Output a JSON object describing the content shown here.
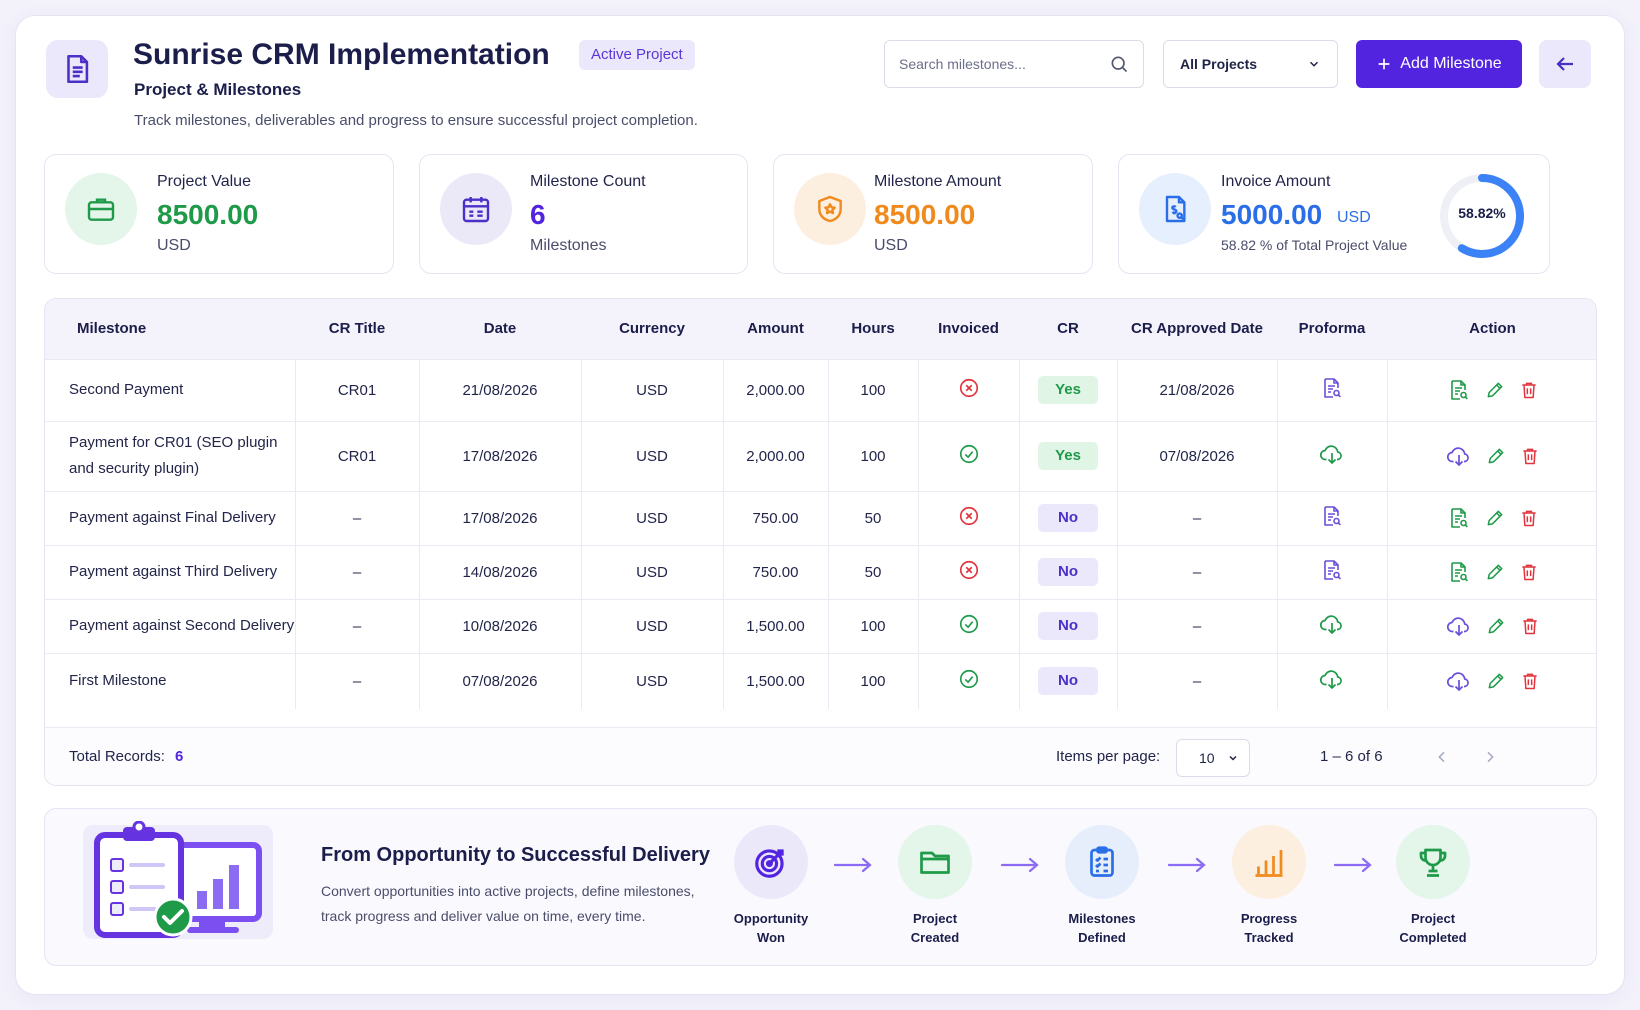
{
  "header": {
    "title": "Sunrise CRM Implementation",
    "status_badge": "Active Project",
    "subtitle": "Project & Milestones",
    "description": "Track milestones, deliverables and progress to ensure successful project completion.",
    "search_placeholder": "Search milestones...",
    "project_filter": "All Projects",
    "add_button": "Add Milestone"
  },
  "stats": {
    "project_value": {
      "label": "Project Value",
      "value": "8500.00",
      "unit": "USD"
    },
    "milestone_count": {
      "label": "Milestone Count",
      "value": "6",
      "unit": "Milestones"
    },
    "milestone_amount": {
      "label": "Milestone Amount",
      "value": "8500.00",
      "unit": "USD"
    },
    "invoice_amount": {
      "label": "Invoice Amount",
      "value": "5000.00",
      "unit": "USD",
      "note": "58.82 % of Total Project Value",
      "percent_label": "58.82%",
      "percent": 58.82
    }
  },
  "table": {
    "columns": [
      "Milestone",
      "CR Title",
      "Date",
      "Currency",
      "Amount",
      "Hours",
      "Invoiced",
      "CR",
      "CR Approved Date",
      "Proforma",
      "Action"
    ],
    "rows": [
      {
        "milestone": "Second Payment",
        "cr_title": "CR01",
        "date": "21/08/2026",
        "currency": "USD",
        "amount": "2,000.00",
        "hours": "100",
        "invoiced": false,
        "cr": "Yes",
        "cr_approved_date": "21/08/2026",
        "proforma": "document-search-icon"
      },
      {
        "milestone": "Payment for CR01 (SEO plugin and security plugin)",
        "cr_title": "CR01",
        "date": "17/08/2026",
        "currency": "USD",
        "amount": "2,000.00",
        "hours": "100",
        "invoiced": true,
        "cr": "Yes",
        "cr_approved_date": "07/08/2026",
        "proforma": "cloud-download-icon"
      },
      {
        "milestone": "Payment against Final Delivery",
        "cr_title": "–",
        "date": "17/08/2026",
        "currency": "USD",
        "amount": "750.00",
        "hours": "50",
        "invoiced": false,
        "cr": "No",
        "cr_approved_date": "–",
        "proforma": "document-search-icon"
      },
      {
        "milestone": "Payment against Third Delivery",
        "cr_title": "–",
        "date": "14/08/2026",
        "currency": "USD",
        "amount": "750.00",
        "hours": "50",
        "invoiced": false,
        "cr": "No",
        "cr_approved_date": "–",
        "proforma": "document-search-icon"
      },
      {
        "milestone": "Payment against Second Delivery",
        "cr_title": "–",
        "date": "10/08/2026",
        "currency": "USD",
        "amount": "1,500.00",
        "hours": "100",
        "invoiced": true,
        "cr": "No",
        "cr_approved_date": "–",
        "proforma": "cloud-download-icon"
      },
      {
        "milestone": "First Milestone",
        "cr_title": "–",
        "date": "07/08/2026",
        "currency": "USD",
        "amount": "1,500.00",
        "hours": "100",
        "invoiced": true,
        "cr": "No",
        "cr_approved_date": "–",
        "proforma": "cloud-download-icon"
      }
    ],
    "footer": {
      "total_label": "Total Records:",
      "total_value": "6",
      "items_per_page_label": "Items per page:",
      "items_per_page": "10",
      "range": "1 – 6 of 6"
    }
  },
  "banner": {
    "title": "From Opportunity to Successful Delivery",
    "description": "Convert opportunities into active projects, define milestones, track progress and deliver value on time, every time.",
    "steps": [
      {
        "line1": "Opportunity",
        "line2": "Won",
        "icon": "target-icon"
      },
      {
        "line1": "Project",
        "line2": "Created",
        "icon": "folder-icon"
      },
      {
        "line1": "Milestones",
        "line2": "Defined",
        "icon": "checklist-icon"
      },
      {
        "line1": "Progress",
        "line2": "Tracked",
        "icon": "bar-chart-icon"
      },
      {
        "line1": "Project",
        "line2": "Completed",
        "icon": "trophy-icon"
      }
    ]
  },
  "colors": {
    "primary": "#5224e0",
    "green": "#1e9a49",
    "orange": "#f08a1c",
    "blue": "#2a6fe8",
    "red": "#e2343c"
  }
}
